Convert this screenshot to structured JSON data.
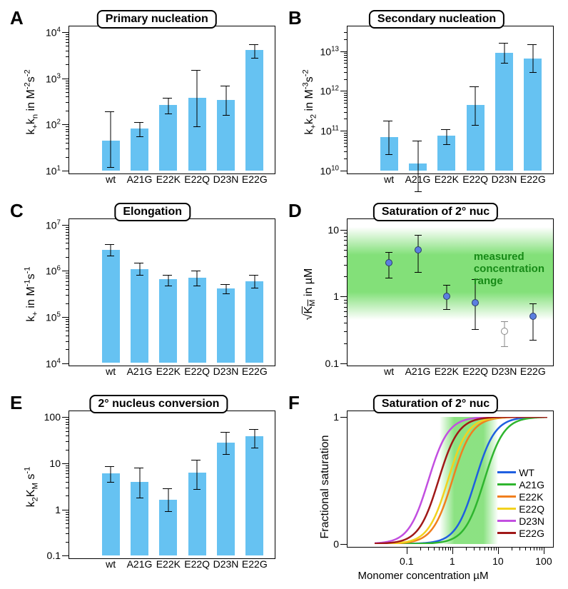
{
  "categories": [
    "wt",
    "A21G",
    "E22K",
    "E22Q",
    "D23N",
    "E22G"
  ],
  "bar_color": "#66c2f2",
  "panelA": {
    "letter": "A",
    "title": "Primary nucleation",
    "ylabel": "k₊kₙ in M⁻²s⁻²",
    "ylabel_html": "k<sub>+</sub>k<sub>n</sub> in M<sup>-2</sup>s<sup>-2</sup>",
    "type": "bar-log",
    "ylog_min": 10,
    "ylog_max": 10000,
    "ytick_exp": [
      1,
      2,
      3,
      4
    ],
    "values": [
      45,
      80,
      260,
      370,
      340,
      4100
    ],
    "err_low": [
      12,
      55,
      170,
      90,
      160,
      2800
    ],
    "err_high": [
      190,
      110,
      380,
      1500,
      700,
      5400
    ]
  },
  "panelB": {
    "letter": "B",
    "title": "Secondary nucleation",
    "ylabel_html": "k<sub>+</sub>k<sub>2</sub> in M<sup>-3</sup>s<sup>-2</sup>",
    "type": "bar-log",
    "ylog_min": 10000000000.0,
    "ylog_max": 30000000000000.0,
    "ytick_exp": [
      10,
      11,
      12,
      13
    ],
    "values": [
      70000000000.0,
      15000000000.0,
      75000000000.0,
      450000000000.0,
      9000000000000.0,
      6500000000000.0
    ],
    "err_low": [
      25000000000.0,
      3000000000.0,
      45000000000.0,
      140000000000.0,
      5000000000000.0,
      3000000000000.0
    ],
    "err_high": [
      180000000000.0,
      55000000000.0,
      110000000000.0,
      1300000000000.0,
      16000000000000.0,
      15000000000000.0
    ]
  },
  "panelC": {
    "letter": "C",
    "title": "Elongation",
    "ylabel_html": "k<sub>+</sub> in M<sup>-1</sup>s<sup>-1</sup>",
    "type": "bar-log",
    "ylog_min": 10000.0,
    "ylog_max": 10000000.0,
    "ytick_exp": [
      4,
      5,
      6,
      7
    ],
    "values": [
      2800000.0,
      1100000.0,
      650000.0,
      700000.0,
      420000.0,
      600000.0
    ],
    "err_low": [
      2100000.0,
      800000.0,
      480000.0,
      480000.0,
      320000.0,
      430000.0
    ],
    "err_high": [
      3800000.0,
      1500000.0,
      800000.0,
      1000000.0,
      520000.0,
      800000.0
    ]
  },
  "panelD": {
    "letter": "D",
    "title": "Saturation of 2° nuc",
    "ylabel_html": "√<span style='text-decoration:overline'>K<sub>M</sub></span> in µM",
    "type": "scatter-log",
    "ylog_min": 0.1,
    "ylog_max": 12,
    "yticks": [
      0.1,
      1,
      10
    ],
    "ytick_labels": [
      "0.1",
      "1",
      "10"
    ],
    "green_low": 0.9,
    "green_high": 5.5,
    "annotation": "measured\nconcentration\nrange",
    "values": [
      3.2,
      5.0,
      1.0,
      0.8,
      0.3,
      0.5
    ],
    "err_low": [
      1.9,
      2.3,
      0.65,
      0.32,
      0.18,
      0.22
    ],
    "err_high": [
      4.6,
      8.5,
      1.5,
      1.8,
      0.42,
      0.78
    ],
    "open_index": 4,
    "marker_fill": "#5b7fe0",
    "marker_stroke": "#2b3a6a"
  },
  "panelE": {
    "letter": "E",
    "title": "2° nucleus conversion",
    "ylabel_html": "k<sub>2</sub>K<sub>M</sub> s<sup>-1</sup>",
    "type": "bar-log",
    "ylog_min": 0.1,
    "ylog_max": 100,
    "yticks": [
      0.1,
      1,
      10,
      100
    ],
    "ytick_labels": [
      "0.1",
      "1",
      "10",
      "100"
    ],
    "values": [
      6,
      4,
      1.6,
      6.2,
      28,
      38
    ],
    "err_low": [
      4,
      1.8,
      0.9,
      2.8,
      16,
      22
    ],
    "err_high": [
      8.5,
      8,
      2.9,
      12,
      48,
      56
    ]
  },
  "panelF": {
    "letter": "F",
    "title": "Saturation of 2° nuc",
    "ylabel": "Fractional saturation",
    "xlabel": "Monomer concentration µM",
    "type": "curves",
    "xlog_min": 0.02,
    "xlog_max": 120,
    "xticks": [
      0.1,
      1,
      10,
      100
    ],
    "xtick_labels": [
      "0.1",
      "1",
      "10",
      "100"
    ],
    "yticks": [
      0,
      1
    ],
    "green_low_x": 0.9,
    "green_high_x": 6,
    "series": [
      {
        "name": "WT",
        "color": "#1f5fe0",
        "Km": 3.2
      },
      {
        "name": "A21G",
        "color": "#2fb52f",
        "Km": 5.0
      },
      {
        "name": "E22K",
        "color": "#f07f1f",
        "Km": 1.0
      },
      {
        "name": "E22Q",
        "color": "#f2d21f",
        "Km": 0.8
      },
      {
        "name": "D23N",
        "color": "#c24fe0",
        "Km": 0.3
      },
      {
        "name": "E22G",
        "color": "#a01818",
        "Km": 0.5
      }
    ],
    "hill_n": 2
  }
}
